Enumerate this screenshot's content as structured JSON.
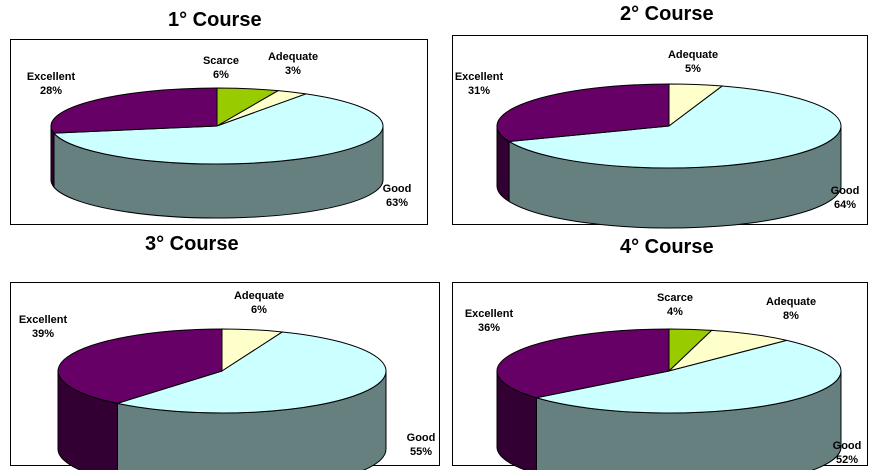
{
  "chart_data": [
    {
      "type": "pie",
      "title": "1° Course",
      "slices": [
        {
          "name": "Scarce",
          "value": 6,
          "label": "6%"
        },
        {
          "name": "Adequate",
          "value": 3,
          "label": "3%"
        },
        {
          "name": "Good",
          "value": 63,
          "label": "63%"
        },
        {
          "name": "Excellent",
          "value": 28,
          "label": "28%"
        }
      ]
    },
    {
      "type": "pie",
      "title": "2° Course",
      "slices": [
        {
          "name": "Adequate",
          "value": 5,
          "label": "5%"
        },
        {
          "name": "Good",
          "value": 64,
          "label": "64%"
        },
        {
          "name": "Excellent",
          "value": 31,
          "label": "31%"
        }
      ]
    },
    {
      "type": "pie",
      "title": "3° Course",
      "slices": [
        {
          "name": "Adequate",
          "value": 6,
          "label": "6%"
        },
        {
          "name": "Good",
          "value": 55,
          "label": "55%"
        },
        {
          "name": "Excellent",
          "value": 39,
          "label": "39%"
        }
      ]
    },
    {
      "type": "pie",
      "title": "4° Course",
      "slices": [
        {
          "name": "Scarce",
          "value": 4,
          "label": "4%"
        },
        {
          "name": "Adequate",
          "value": 8,
          "label": "8%"
        },
        {
          "name": "Good",
          "value": 52,
          "label": "52%"
        },
        {
          "name": "Excellent",
          "value": 36,
          "label": "36%"
        }
      ]
    }
  ],
  "colors": {
    "Scarce": "#99CC00",
    "Adequate": "#FFFFCC",
    "Good": "#CCFFFF",
    "Excellent": "#660066"
  }
}
